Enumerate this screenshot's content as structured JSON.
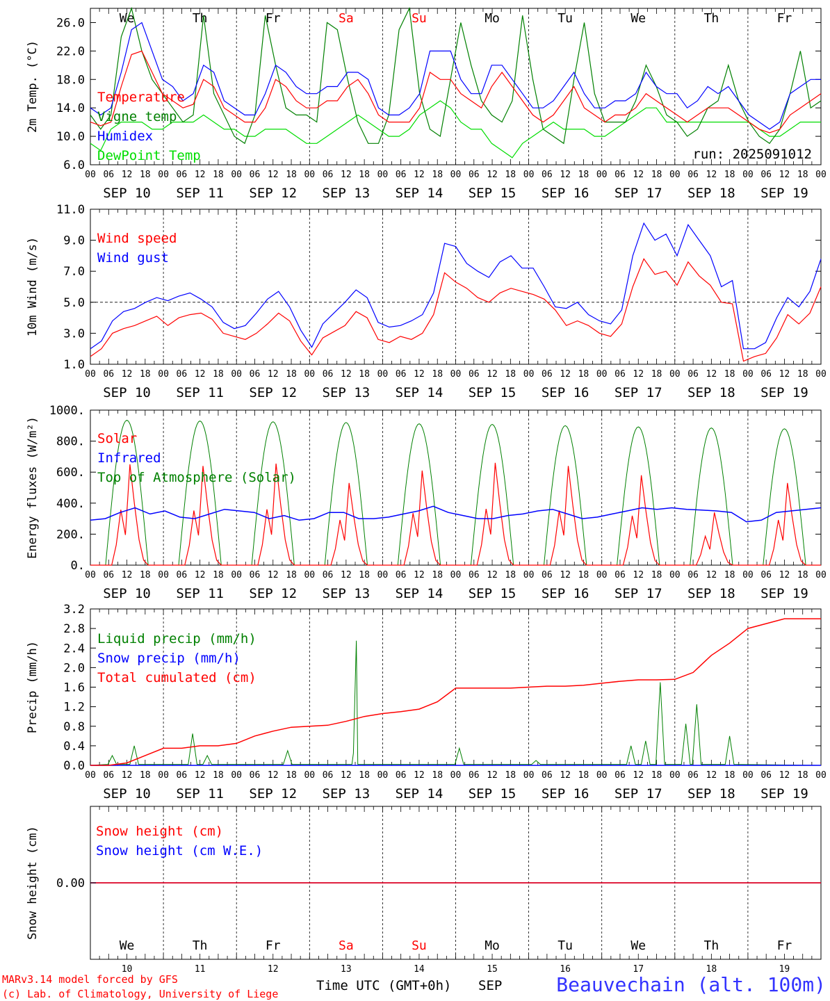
{
  "chart_data": [
    {
      "type": "line",
      "ylabel": "2m Temp. (°C)",
      "ylim": [
        6,
        28
      ],
      "yticks": [
        "6.0",
        "10.0",
        "14.0",
        "18.0",
        "22.0",
        "26.0"
      ],
      "annotation": "run: 2025091012",
      "grid": "dashed vertical lines at midnight",
      "legend_position": "left",
      "series": [
        {
          "name": "Temperature",
          "color": "#ff0000",
          "values": [
            12,
            11.5,
            12,
            17,
            21.5,
            22,
            19,
            16,
            15,
            14,
            14.5,
            18,
            17,
            14,
            13,
            12,
            12,
            14,
            18,
            17,
            15,
            14,
            14,
            15,
            15,
            17,
            18,
            16,
            13,
            12,
            12,
            12,
            14,
            19,
            18,
            18,
            16,
            15,
            14,
            17,
            19,
            17,
            15,
            13,
            12,
            13,
            15,
            17,
            14,
            13,
            12,
            13,
            13,
            14,
            16,
            15,
            14,
            13,
            12,
            13,
            14,
            14,
            14,
            13,
            12,
            11,
            10.5,
            11,
            13,
            14,
            15,
            16
          ]
        },
        {
          "name": "Vigne temp",
          "color": "#008000",
          "values": [
            13,
            11,
            13,
            24,
            28,
            22,
            18,
            16,
            14,
            12,
            13,
            27,
            16,
            13,
            10,
            9,
            13,
            27,
            20,
            14,
            13,
            13,
            12,
            26,
            25,
            18,
            12,
            9,
            9,
            13,
            25,
            28,
            16,
            11,
            10,
            18,
            26,
            20,
            15,
            13,
            12,
            15,
            27,
            18,
            11,
            10,
            9,
            18,
            26,
            16,
            12,
            12,
            12,
            15,
            20,
            17,
            13,
            12,
            10,
            11,
            14,
            15,
            20,
            15,
            12,
            10,
            9,
            11,
            16,
            22,
            14,
            15
          ]
        },
        {
          "name": "Humidex",
          "color": "#0000ff",
          "values": [
            14,
            13,
            14,
            19,
            25,
            26,
            22,
            18,
            17,
            15,
            16,
            20,
            19,
            15,
            14,
            13,
            13,
            16,
            20,
            19,
            17,
            16,
            16,
            17,
            17,
            19,
            19,
            18,
            14,
            13,
            13,
            14,
            16,
            22,
            22,
            22,
            18,
            16,
            16,
            20,
            20,
            18,
            16,
            14,
            14,
            15,
            17,
            19,
            16,
            14,
            14,
            15,
            15,
            16,
            19,
            17,
            16,
            16,
            14,
            15,
            17,
            16,
            17,
            15,
            13,
            12,
            11,
            12,
            16,
            17,
            18,
            18
          ]
        },
        {
          "name": "DewPoint Temp",
          "color": "#00dd00",
          "values": [
            9,
            8,
            11,
            12,
            12,
            12,
            11,
            11,
            12,
            12,
            12,
            13,
            12,
            11,
            11,
            10,
            10,
            11,
            11,
            11,
            10,
            9,
            9,
            10,
            11,
            12,
            13,
            12,
            11,
            10,
            10,
            11,
            13,
            14,
            15,
            14,
            12,
            11,
            11,
            9,
            8,
            7,
            9,
            10,
            11,
            12,
            11,
            11,
            11,
            10,
            10,
            11,
            12,
            13,
            14,
            14,
            12,
            12,
            12,
            12,
            12,
            12,
            12,
            12,
            12,
            11,
            10,
            10,
            11,
            12,
            12,
            12
          ]
        }
      ]
    },
    {
      "type": "line",
      "ylabel": "10m Wind (m/s)",
      "ylim": [
        1,
        11
      ],
      "yticks": [
        "1.0",
        "3.0",
        "5.0",
        "7.0",
        "9.0",
        "11.0"
      ],
      "reference_line": 5.0,
      "series": [
        {
          "name": "Wind speed",
          "color": "#ff0000",
          "values": [
            1.5,
            2,
            3,
            3.3,
            3.5,
            3.8,
            4.1,
            3.5,
            4,
            4.2,
            4.3,
            3.9,
            3,
            2.8,
            2.6,
            3,
            3.6,
            4.3,
            3.8,
            2.5,
            1.6,
            2.7,
            3.1,
            3.5,
            4.4,
            4,
            2.6,
            2.4,
            2.8,
            2.6,
            3,
            4.2,
            6.9,
            6.3,
            5.9,
            5.3,
            5,
            5.6,
            5.9,
            5.7,
            5.5,
            5.2,
            4.5,
            3.5,
            3.8,
            3.5,
            3,
            2.8,
            3.6,
            6,
            7.8,
            6.8,
            7,
            6.1,
            7.6,
            6.7,
            6.1,
            5,
            4.9,
            1.2,
            1.5,
            1.7,
            2.7,
            4.2,
            3.6,
            4.3,
            6
          ]
        },
        {
          "name": "Wind gust",
          "color": "#0000ff",
          "values": [
            2,
            2.5,
            3.8,
            4.4,
            4.6,
            5,
            5.3,
            5.1,
            5.4,
            5.6,
            5.2,
            4.7,
            3.7,
            3.3,
            3.5,
            4.3,
            5.2,
            5.7,
            4.7,
            3.2,
            2.1,
            3.6,
            4.3,
            5,
            5.8,
            5.3,
            3.7,
            3.4,
            3.5,
            3.8,
            4.2,
            5.6,
            8.8,
            8.6,
            7.5,
            7,
            6.6,
            7.6,
            8,
            7.2,
            7.2,
            6,
            4.7,
            4.6,
            5,
            4.2,
            3.8,
            3.6,
            4.5,
            8,
            10.1,
            9,
            9.4,
            8,
            10,
            9,
            8,
            6,
            6.4,
            2,
            2,
            2.4,
            4,
            5.3,
            4.7,
            5.7,
            7.8
          ]
        }
      ]
    },
    {
      "type": "line",
      "ylabel": "Energy fluxes (W/m²)",
      "ylim": [
        0,
        1000
      ],
      "yticks": [
        "0.",
        "200.",
        "400.",
        "600.",
        "800.",
        "1000."
      ],
      "series": [
        {
          "name": "Solar",
          "color": "#ff0000",
          "daily_peaks": [
            650,
            640,
            655,
            530,
            610,
            660,
            640,
            580,
            340,
            530
          ]
        },
        {
          "name": "Infrared",
          "color": "#0000ff",
          "values": [
            290,
            300,
            340,
            370,
            330,
            350,
            310,
            300,
            330,
            360,
            350,
            340,
            300,
            320,
            290,
            300,
            340,
            340,
            300,
            300,
            310,
            330,
            350,
            380,
            340,
            320,
            300,
            300,
            320,
            330,
            350,
            360,
            330,
            300,
            310,
            330,
            350,
            370,
            360,
            370,
            360,
            355,
            350,
            340,
            280,
            290,
            340,
            350,
            360,
            370
          ]
        },
        {
          "name": "Top of Atmosphere (Solar)",
          "color": "#008000",
          "daily_peaks": [
            935,
            930,
            925,
            920,
            912,
            908,
            900,
            892,
            885,
            880
          ]
        }
      ]
    },
    {
      "type": "line",
      "ylabel": "Precip (mm/h)",
      "ylim": [
        0,
        3.2
      ],
      "yticks": [
        "0.0",
        "0.4",
        "0.8",
        "1.2",
        "1.6",
        "2.0",
        "2.4",
        "2.8",
        "3.2"
      ],
      "series": [
        {
          "name": "Liquid precip (mm/h)",
          "color": "#008000",
          "events": [
            [
              0.3,
              0.2
            ],
            [
              0.6,
              0.4
            ],
            [
              1.4,
              0.65
            ],
            [
              1.6,
              0.2
            ],
            [
              2.7,
              0.3
            ],
            [
              3.6,
              0.25
            ],
            [
              3.64,
              2.55
            ],
            [
              5.05,
              0.35
            ],
            [
              6.1,
              0.1
            ],
            [
              7.4,
              0.4
            ],
            [
              7.6,
              0.5
            ],
            [
              7.8,
              1.7
            ],
            [
              8.15,
              0.85
            ],
            [
              8.3,
              1.25
            ],
            [
              8.75,
              0.6
            ]
          ]
        },
        {
          "name": "Snow precip (mm/h)",
          "color": "#0000ff",
          "values": [
            0
          ]
        },
        {
          "name": "Total cumulated (cm)",
          "color": "#ff0000",
          "values": [
            0,
            0,
            0.05,
            0.2,
            0.35,
            0.35,
            0.4,
            0.4,
            0.45,
            0.6,
            0.7,
            0.78,
            0.8,
            0.82,
            0.9,
            1.0,
            1.06,
            1.1,
            1.15,
            1.3,
            1.58,
            1.58,
            1.58,
            1.58,
            1.6,
            1.62,
            1.62,
            1.64,
            1.68,
            1.72,
            1.75,
            1.75,
            1.76,
            1.9,
            2.25,
            2.5,
            2.8,
            2.9,
            3.0,
            3.0,
            3.0
          ]
        }
      ]
    },
    {
      "type": "line",
      "ylabel": "Snow height (cm)",
      "ytick": "0.00",
      "series": [
        {
          "name": "Snow height (cm)",
          "color": "#ff0000",
          "values": [
            0
          ]
        },
        {
          "name": "Snow height (cm W.E.)",
          "color": "#0000ff",
          "values": [
            0
          ]
        }
      ]
    }
  ],
  "axis": {
    "hour_ticks": [
      "00",
      "06",
      "12",
      "18"
    ],
    "end_tick": "00",
    "date_labels": [
      "SEP 10",
      "SEP 11",
      "SEP 12",
      "SEP 13",
      "SEP 14",
      "SEP 15",
      "SEP 16",
      "SEP 17",
      "SEP 18",
      "SEP 19"
    ],
    "weekdays": [
      "We",
      "Th",
      "Fr",
      "Sa",
      "Su",
      "Mo",
      "Tu",
      "We",
      "Th",
      "Fr"
    ],
    "weekday_colors": [
      "#000000",
      "#000000",
      "#000000",
      "#ff0000",
      "#ff0000",
      "#000000",
      "#000000",
      "#000000",
      "#000000",
      "#000000"
    ],
    "day_numbers": [
      "10",
      "11",
      "12",
      "13",
      "14",
      "15",
      "16",
      "17",
      "18",
      "19"
    ],
    "xlabel": "Time UTC (GMT+0h)",
    "month": "SEP"
  },
  "footer": {
    "credit_line1": "MARv3.14 model forced by GFS",
    "credit_line2": "(c) Lab. of Climatology, University of Liege",
    "station": "Beauvechain (alt. 100m)"
  }
}
